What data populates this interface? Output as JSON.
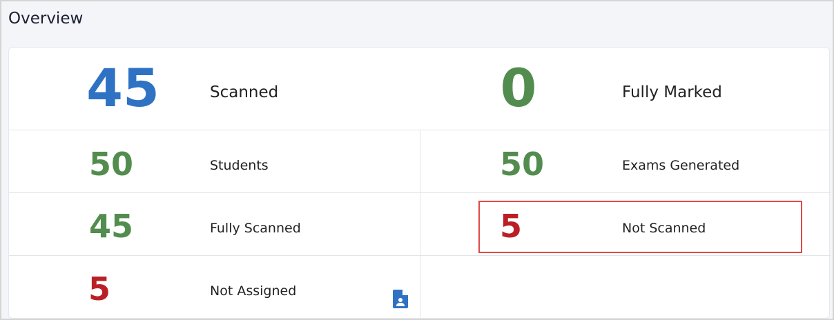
{
  "title": "Overview",
  "stats": [
    {
      "value": "45",
      "label": "Scanned",
      "color": "#2f72c4"
    },
    {
      "value": "0",
      "label": "Fully Marked",
      "color": "#528c4e"
    },
    {
      "value": "50",
      "label": "Students",
      "color": "#528c4e"
    },
    {
      "value": "50",
      "label": "Exams Generated",
      "color": "#528c4e"
    },
    {
      "value": "45",
      "label": "Fully Scanned",
      "color": "#528c4e"
    },
    {
      "value": "5",
      "label": "Not Scanned",
      "color": "#bb1f26"
    },
    {
      "value": "5",
      "label": "Not Assigned",
      "color": "#bb1f26"
    }
  ],
  "icons": {
    "not_assigned": "student-document-icon"
  }
}
